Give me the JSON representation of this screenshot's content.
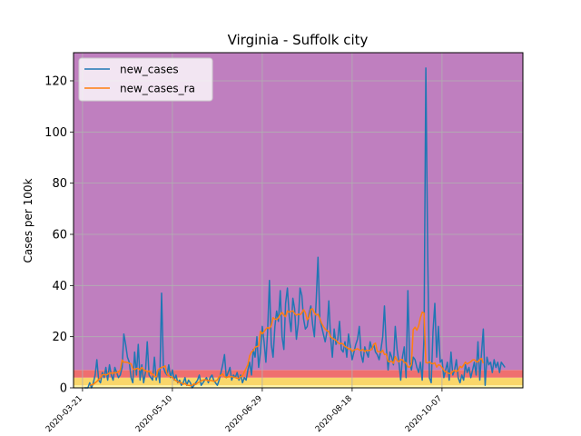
{
  "chart_data": {
    "type": "line",
    "title": "Virginia - Suffolk city",
    "xlabel": "",
    "ylabel": "Cases per 100k",
    "ylim": [
      0,
      131
    ],
    "xlim": [
      "2020-03-16",
      "2020-11-21"
    ],
    "grid": true,
    "legend_position": "top-left",
    "xticks": [
      "2020-03-21",
      "2020-05-10",
      "2020-06-29",
      "2020-08-18",
      "2020-10-07"
    ],
    "yticks": [
      0,
      20,
      40,
      60,
      80,
      100,
      120
    ],
    "background_bands": [
      {
        "from": 0,
        "to": 1,
        "color": "#fef5a8"
      },
      {
        "from": 1,
        "to": 4,
        "color": "#f9d66a"
      },
      {
        "from": 4,
        "to": 7,
        "color": "#ef6f6f"
      },
      {
        "from": 7,
        "to": 131,
        "color": "#bf7fbf"
      }
    ],
    "series": [
      {
        "name": "new_cases",
        "color": "#1f77b4",
        "start": "2020-03-22",
        "values": [
          0,
          0,
          0,
          2,
          0,
          2,
          5,
          11,
          3,
          2,
          6,
          4,
          8,
          3,
          9,
          5,
          3,
          8,
          6,
          4,
          5,
          8,
          21,
          17,
          12,
          10,
          4,
          2,
          14,
          5,
          17,
          3,
          9,
          2,
          6,
          18,
          5,
          4,
          3,
          12,
          3,
          7,
          2,
          37,
          8,
          6,
          5,
          9,
          4,
          7,
          3,
          5,
          2,
          3,
          1,
          2,
          4,
          1,
          3,
          2,
          0,
          1,
          2,
          3,
          5,
          1,
          2,
          3,
          4,
          2,
          4,
          5,
          3,
          2,
          1,
          3,
          6,
          9,
          13,
          4,
          6,
          8,
          3,
          5,
          4,
          6,
          3,
          5,
          2,
          4,
          3,
          7,
          10,
          5,
          15,
          12,
          20,
          8,
          14,
          24,
          18,
          10,
          22,
          42,
          17,
          12,
          24,
          30,
          26,
          38,
          20,
          15,
          33,
          39,
          28,
          22,
          35,
          31,
          19,
          25,
          39,
          36,
          27,
          23,
          24,
          29,
          32,
          25,
          20,
          34,
          51,
          27,
          24,
          21,
          18,
          22,
          34,
          20,
          12,
          23,
          17,
          19,
          26,
          15,
          14,
          18,
          12,
          21,
          16,
          11,
          14,
          17,
          19,
          24,
          13,
          10,
          16,
          14,
          12,
          18,
          15,
          17,
          14,
          13,
          11,
          15,
          20,
          32,
          16,
          7,
          14,
          12,
          9,
          24,
          15,
          10,
          3,
          12,
          16,
          4,
          38,
          10,
          7,
          12,
          11,
          8,
          6,
          10,
          3,
          20,
          125,
          53,
          4,
          2,
          22,
          33,
          12,
          24,
          10,
          11,
          4,
          7,
          10,
          3,
          14,
          5,
          7,
          11,
          4,
          2,
          5,
          3,
          9,
          6,
          8,
          4,
          7,
          10,
          5,
          18,
          3,
          14,
          23,
          1,
          12,
          9,
          10,
          6,
          11,
          8,
          10,
          6,
          10,
          9,
          8
        ]
      },
      {
        "name": "new_cases_ra",
        "color": "#ff7f0e",
        "start": "2020-03-25",
        "values": [
          1.0,
          1.2,
          1.4,
          2.0,
          2.5,
          3.3,
          4.0,
          5.1,
          5.2,
          5.0,
          5.3,
          5.9,
          5.7,
          5.7,
          5.9,
          5.9,
          6.3,
          7.0,
          10.9,
          10.0,
          10.1,
          9.9,
          9.6,
          9.4,
          7.5,
          7.1,
          7.6,
          7.6,
          7.0,
          8.0,
          7.1,
          6.8,
          6.2,
          6.6,
          5.7,
          5.4,
          4.4,
          4.3,
          7.0,
          7.6,
          8.0,
          8.2,
          8.6,
          5.5,
          4.7,
          4.4,
          4.1,
          3.3,
          2.8,
          2.3,
          2.1,
          2.0,
          1.4,
          1.7,
          1.1,
          1.0,
          0.9,
          1.0,
          1.6,
          1.3,
          1.9,
          2.3,
          2.8,
          3.0,
          3.2,
          3.0,
          2.8,
          2.9,
          2.8,
          2.6,
          2.7,
          3.1,
          4.4,
          5.0,
          5.4,
          4.3,
          4.1,
          4.3,
          4.3,
          4.4,
          4.2,
          4.1,
          3.7,
          3.7,
          4.4,
          4.6,
          6.2,
          7.6,
          9.1,
          12.5,
          14.0,
          14.6,
          15.9,
          16.1,
          16.4,
          22.1,
          21.1,
          22.0,
          23.0,
          23.6,
          23.2,
          24.3,
          27.4,
          26.9,
          26.7,
          27.4,
          28.6,
          29.5,
          28.4,
          27.8,
          30.1,
          29.6,
          29.9,
          30.1,
          29.1,
          28.4,
          28.8,
          28.6,
          29.3,
          30.6,
          29.4,
          26.6,
          27.6,
          30.7,
          30.9,
          29.4,
          28.4,
          28.8,
          27.1,
          25.3,
          24.0,
          23.0,
          22.3,
          22.0,
          20.0,
          19.4,
          19.0,
          18.6,
          17.8,
          17.2,
          17.4,
          17.1,
          16.1,
          15.9,
          15.2,
          15.4,
          14.3,
          14.8,
          15.0,
          15.3,
          14.8,
          14.6,
          15.0,
          14.2,
          14.7,
          14.6,
          14.7,
          15.2,
          17.0,
          17.5,
          14.2,
          14.2,
          13.8,
          14.7,
          13.0,
          13.2,
          10.3,
          10.3,
          10.4,
          9.6,
          12.2,
          10.7,
          10.2,
          11.1,
          11.0,
          9.9,
          9.8,
          8.2,
          8.1,
          9.2,
          22.8,
          23.7,
          22.5,
          24.3,
          27.4,
          29.6,
          29.3,
          9.9,
          9.7,
          10.2,
          9.6,
          9.4,
          9.8,
          8.1,
          9.0,
          8.8,
          7.9,
          6.9,
          6.3,
          5.9,
          5.6,
          5.6,
          6.5,
          6.9,
          6.4,
          6.8,
          8.4,
          7.9,
          8.9,
          10.1,
          9.3,
          9.8,
          10.2,
          10.9,
          11.0,
          10.3,
          10.1,
          11.1,
          11.5,
          9.6
        ]
      }
    ]
  }
}
